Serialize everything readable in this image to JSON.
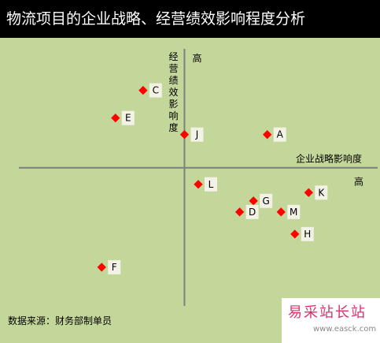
{
  "title": "物流项目的企业战略、经营绩效影响程度分析",
  "source_note": "数据来源：财务部制单员",
  "watermark": {
    "brand": "易采站长站",
    "url": "www.easck.com"
  },
  "colors": {
    "title_bg": "#000000",
    "plot_bg": "#c4d79b",
    "marker": "#ff0000",
    "axis": "#7f7f7f"
  },
  "chart_data": {
    "type": "scatter",
    "title": "物流项目的企业战略、经营绩效影响程度分析",
    "xlabel": "企业战略影响度",
    "ylabel": "经营绩效影响度",
    "x_high_label": "高",
    "y_high_label": "高",
    "xlim": [
      -6,
      7
    ],
    "ylim": [
      -5,
      4.3
    ],
    "grid": false,
    "points": [
      {
        "label": "C",
        "x": -1.5,
        "y": 2.8
      },
      {
        "label": "E",
        "x": -2.5,
        "y": 1.8
      },
      {
        "label": "J",
        "x": 0.0,
        "y": 1.2
      },
      {
        "label": "A",
        "x": 3.0,
        "y": 1.2
      },
      {
        "label": "L",
        "x": 0.5,
        "y": -0.6
      },
      {
        "label": "K",
        "x": 4.5,
        "y": -0.9
      },
      {
        "label": "G",
        "x": 2.5,
        "y": -1.2
      },
      {
        "label": "D",
        "x": 2.0,
        "y": -1.6
      },
      {
        "label": "M",
        "x": 3.5,
        "y": -1.6
      },
      {
        "label": "H",
        "x": 4.0,
        "y": -2.4
      },
      {
        "label": "F",
        "x": -3.0,
        "y": -3.6
      }
    ]
  }
}
